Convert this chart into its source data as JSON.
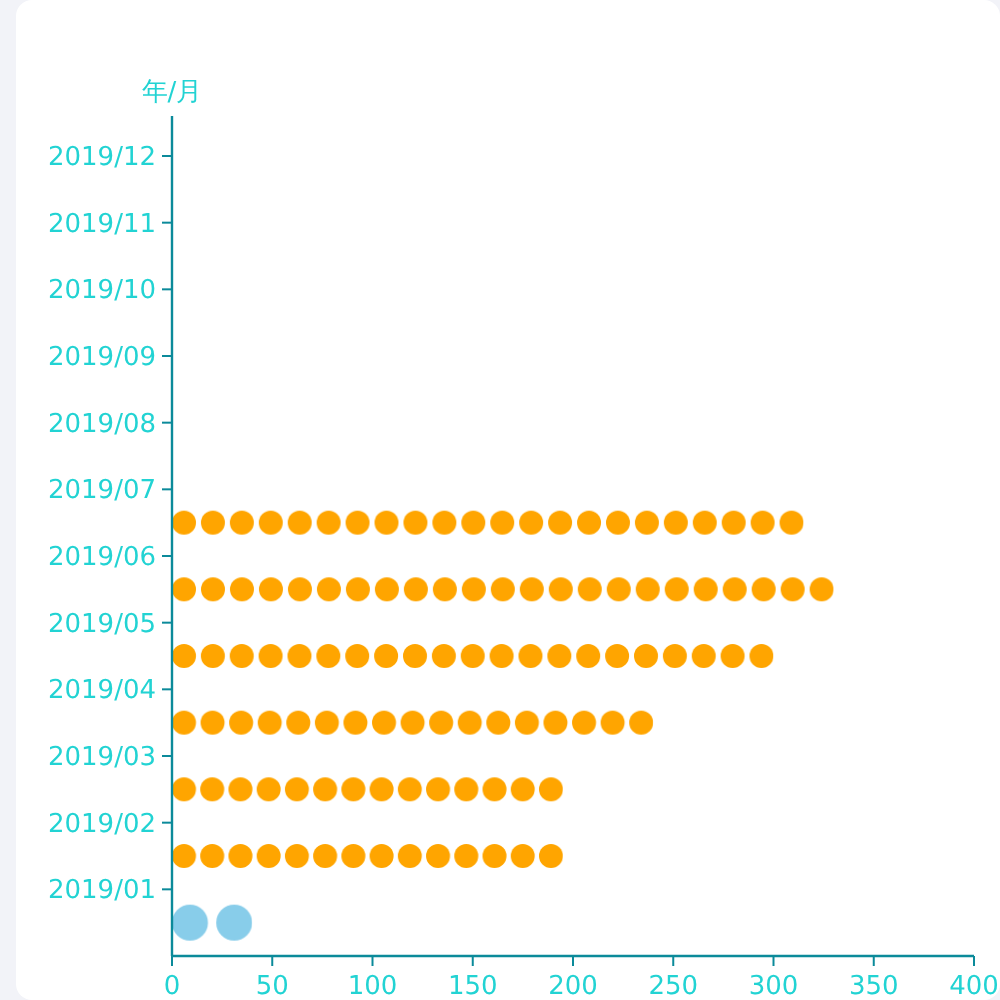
{
  "chart_data": {
    "type": "bar",
    "orientation": "horizontal",
    "ylabel": "年/月",
    "categories": [
      "2019/12",
      "2019/11",
      "2019/10",
      "2019/09",
      "2019/08",
      "2019/07",
      "2019/06",
      "2019/05",
      "2019/04",
      "2019/03",
      "2019/02",
      "2019/01",
      null
    ],
    "series": [
      {
        "color": "#88cdea",
        "values": [
          null,
          null,
          null,
          null,
          null,
          null,
          null,
          null,
          null,
          null,
          null,
          null,
          40
        ]
      },
      {
        "color": "#ffa500",
        "values": [
          null,
          null,
          null,
          null,
          null,
          null,
          315,
          330,
          300,
          240,
          195,
          195,
          null
        ]
      }
    ],
    "xlim": [
      0,
      400
    ],
    "xticks": [
      0,
      50,
      100,
      150,
      200,
      250,
      300,
      350,
      400
    ],
    "marker": "circle",
    "grid": false
  }
}
